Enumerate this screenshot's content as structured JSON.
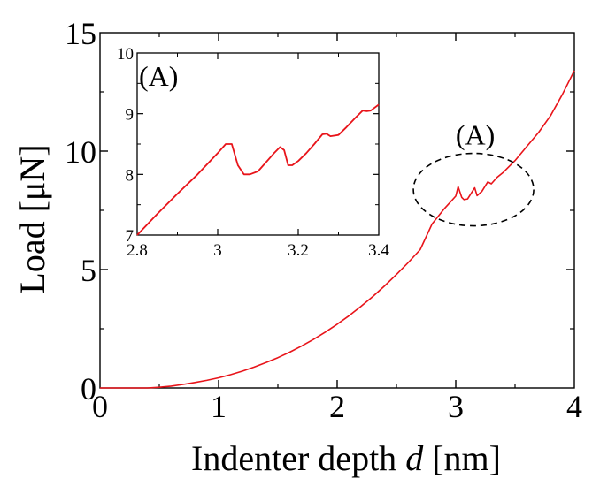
{
  "chart_data": [
    {
      "type": "line",
      "xlabel_parts": [
        "Indenter depth ",
        "d",
        " [nm]"
      ],
      "ylabel": "Load [μN]",
      "xlim": [
        0,
        4
      ],
      "ylim": [
        0,
        15
      ],
      "x_ticks": [
        "0",
        "1",
        "2",
        "3",
        "4"
      ],
      "y_ticks": [
        "0",
        "5",
        "10",
        "15"
      ],
      "grid": false,
      "line_color": "#e8141a",
      "annotation": {
        "label": "(A)",
        "style": "dashed ellipse",
        "x": 3.15,
        "y": 8.3
      },
      "series": [
        {
          "x": [
            0,
            0.2,
            0.4,
            0.5,
            0.6,
            0.7,
            0.8,
            0.9,
            1.0,
            1.1,
            1.2,
            1.3,
            1.4,
            1.5,
            1.6,
            1.7,
            1.8,
            1.9,
            2.0,
            2.1,
            2.2,
            2.3,
            2.4,
            2.5,
            2.6,
            2.7,
            2.8,
            2.9,
            3.0,
            3.02,
            3.05,
            3.07,
            3.1,
            3.14,
            3.16,
            3.18,
            3.22,
            3.27,
            3.3,
            3.35,
            3.4,
            3.5,
            3.6,
            3.7,
            3.8,
            3.9,
            4.0
          ],
          "y": [
            0,
            0,
            0,
            0.03,
            0.08,
            0.15,
            0.23,
            0.32,
            0.43,
            0.56,
            0.71,
            0.88,
            1.07,
            1.28,
            1.51,
            1.77,
            2.05,
            2.36,
            2.69,
            3.05,
            3.44,
            3.86,
            4.31,
            4.79,
            5.3,
            5.84,
            6.92,
            7.55,
            8.1,
            8.5,
            8.05,
            7.95,
            7.98,
            8.3,
            8.45,
            8.12,
            8.3,
            8.7,
            8.62,
            8.9,
            9.1,
            9.6,
            10.2,
            10.8,
            11.5,
            12.4,
            13.4
          ]
        }
      ]
    },
    {
      "type": "line",
      "title": "(A)",
      "xlim": [
        2.8,
        3.4
      ],
      "ylim": [
        7,
        10
      ],
      "x_ticks": [
        "2.8",
        "3",
        "3.2",
        "3.4"
      ],
      "y_ticks": [
        "7",
        "8",
        "9",
        "10"
      ],
      "grid": false,
      "line_color": "#e8141a",
      "series": [
        {
          "x": [
            2.8,
            2.85,
            2.9,
            2.95,
            3.0,
            3.02,
            3.035,
            3.05,
            3.065,
            3.08,
            3.1,
            3.12,
            3.14,
            3.155,
            3.165,
            3.175,
            3.185,
            3.2,
            3.22,
            3.24,
            3.26,
            3.27,
            3.28,
            3.3,
            3.32,
            3.34,
            3.36,
            3.37,
            3.38,
            3.4
          ],
          "y": [
            7.0,
            7.35,
            7.68,
            8.0,
            8.35,
            8.5,
            8.5,
            8.15,
            8.0,
            8.0,
            8.05,
            8.2,
            8.35,
            8.45,
            8.4,
            8.15,
            8.15,
            8.22,
            8.35,
            8.5,
            8.66,
            8.67,
            8.63,
            8.65,
            8.78,
            8.92,
            9.05,
            9.04,
            9.05,
            9.15
          ]
        }
      ]
    }
  ]
}
